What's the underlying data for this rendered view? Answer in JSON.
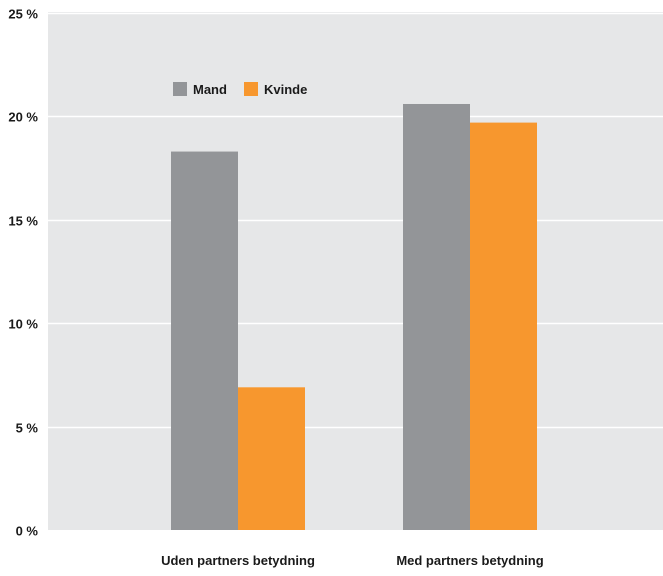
{
  "chart_data": {
    "type": "bar",
    "title": "",
    "xlabel": "",
    "ylabel": "",
    "categories": [
      "Uden partners betydning",
      "Med partners betydning"
    ],
    "series": [
      {
        "name": "Mand",
        "values": [
          18.3,
          20.6
        ],
        "color": "#939598"
      },
      {
        "name": "Kvinde",
        "values": [
          6.9,
          19.7
        ],
        "color": "#f7972e"
      }
    ],
    "ylim": [
      0,
      25
    ],
    "yticks": [
      0,
      5,
      10,
      15,
      20,
      25
    ],
    "ytick_labels": [
      "0 %",
      "5 %",
      "10 %",
      "15 %",
      "20 %",
      "25 %"
    ],
    "grid": true,
    "legend_position": "top-left",
    "plot_background": "#e6e7e8",
    "grid_color": "#ffffff"
  }
}
